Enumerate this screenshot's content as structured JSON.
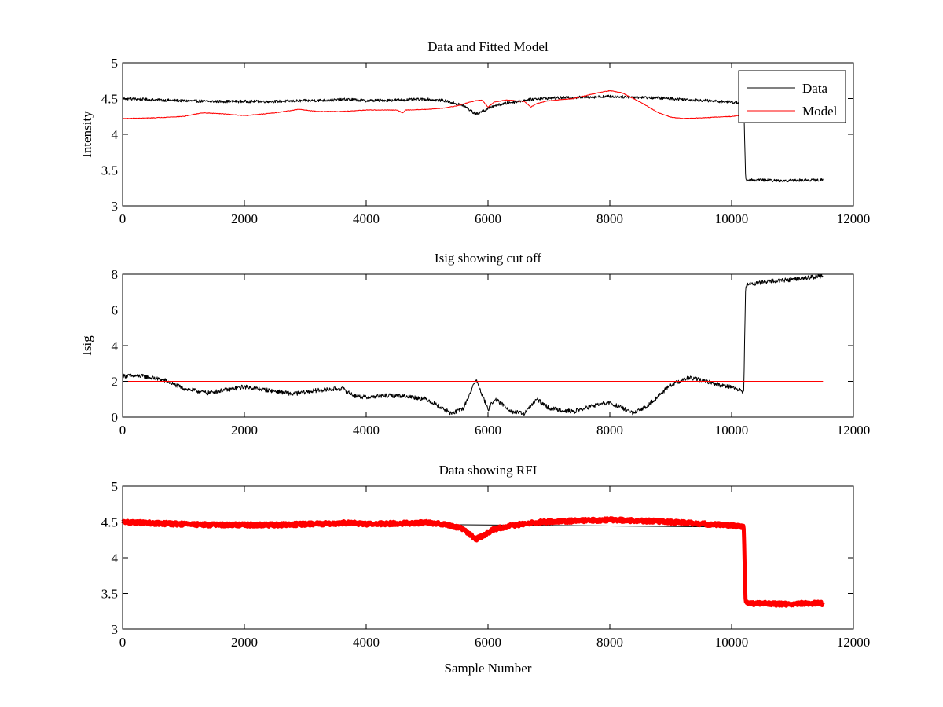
{
  "chart_data": [
    {
      "type": "line",
      "title": "Data and Fitted Model",
      "xlabel": "",
      "ylabel": "Intensity",
      "xlim": [
        0,
        12000
      ],
      "ylim": [
        3,
        5
      ],
      "xticks": [
        0,
        2000,
        4000,
        6000,
        8000,
        10000,
        12000
      ],
      "yticks": [
        3,
        3.5,
        4,
        4.5,
        5
      ],
      "xtick_labels": [
        "0",
        "2000",
        "4000",
        "6000",
        "8000",
        "10000",
        "12000"
      ],
      "ytick_labels": [
        "3",
        "3.5",
        "4",
        "4.5",
        "5"
      ],
      "legend": {
        "position": "top-right",
        "entries": [
          "Data",
          "Model"
        ]
      },
      "series": [
        {
          "name": "Data",
          "color": "#000000",
          "noise": 0.02,
          "x": [
            0,
            300,
            600,
            1000,
            1500,
            2000,
            2500,
            3000,
            3500,
            3700,
            4000,
            4500,
            5000,
            5300,
            5600,
            5800,
            5900,
            6100,
            6400,
            6800,
            7200,
            7600,
            8000,
            8400,
            8800,
            9200,
            9600,
            10000,
            10100,
            10200,
            10230,
            10500,
            10800,
            11200,
            11500
          ],
          "y": [
            4.5,
            4.49,
            4.48,
            4.47,
            4.46,
            4.46,
            4.46,
            4.47,
            4.48,
            4.49,
            4.47,
            4.48,
            4.49,
            4.47,
            4.4,
            4.28,
            4.32,
            4.4,
            4.45,
            4.5,
            4.51,
            4.52,
            4.53,
            4.52,
            4.51,
            4.49,
            4.47,
            4.45,
            4.44,
            4.43,
            3.36,
            3.36,
            3.35,
            3.36,
            3.36
          ]
        },
        {
          "name": "Model",
          "color": "#ff0000",
          "noise": 0.004,
          "x": [
            0,
            500,
            1000,
            1300,
            1600,
            2000,
            2500,
            2900,
            3200,
            3600,
            4000,
            4500,
            4600,
            4650,
            5000,
            5300,
            5500,
            5700,
            5800,
            5900,
            6000,
            6100,
            6300,
            6600,
            6700,
            6800,
            7000,
            7400,
            7600,
            7800,
            8000,
            8200,
            8500,
            8800,
            9000,
            9200,
            9500,
            10000,
            10200
          ],
          "y": [
            4.22,
            4.23,
            4.25,
            4.3,
            4.29,
            4.26,
            4.3,
            4.35,
            4.32,
            4.32,
            4.34,
            4.34,
            4.3,
            4.34,
            4.35,
            4.37,
            4.4,
            4.45,
            4.47,
            4.48,
            4.38,
            4.45,
            4.48,
            4.46,
            4.38,
            4.43,
            4.47,
            4.5,
            4.54,
            4.58,
            4.61,
            4.58,
            4.45,
            4.3,
            4.24,
            4.22,
            4.23,
            4.25,
            4.27
          ]
        }
      ]
    },
    {
      "type": "line",
      "title": "Isig showing cut off",
      "xlabel": "",
      "ylabel": "Isig",
      "xlim": [
        0,
        12000
      ],
      "ylim": [
        0,
        8
      ],
      "xticks": [
        0,
        2000,
        4000,
        6000,
        8000,
        10000,
        12000
      ],
      "yticks": [
        0,
        2,
        4,
        6,
        8
      ],
      "xtick_labels": [
        "0",
        "2000",
        "4000",
        "6000",
        "8000",
        "10000",
        "12000"
      ],
      "ytick_labels": [
        "0",
        "2",
        "4",
        "6",
        "8"
      ],
      "series": [
        {
          "name": "Isig",
          "color": "#000000",
          "noise": 0.12,
          "x": [
            0,
            300,
            700,
            1000,
            1400,
            2000,
            2400,
            2800,
            3200,
            3600,
            3800,
            4000,
            4300,
            4600,
            5000,
            5200,
            5400,
            5600,
            5800,
            5900,
            6000,
            6100,
            6200,
            6400,
            6600,
            6800,
            7000,
            7400,
            7800,
            8000,
            8200,
            8400,
            8600,
            9000,
            9300,
            9600,
            9800,
            10000,
            10200,
            10230,
            10600,
            11000,
            11500
          ],
          "y": [
            2.3,
            2.3,
            2.05,
            1.6,
            1.35,
            1.7,
            1.5,
            1.3,
            1.5,
            1.6,
            1.2,
            1.1,
            1.2,
            1.2,
            1.0,
            0.6,
            0.2,
            0.5,
            2.1,
            1.3,
            0.4,
            1.0,
            0.8,
            0.3,
            0.2,
            1.0,
            0.5,
            0.3,
            0.7,
            0.8,
            0.5,
            0.2,
            0.6,
            1.8,
            2.2,
            2.0,
            1.8,
            1.7,
            1.4,
            7.4,
            7.6,
            7.7,
            7.9
          ]
        },
        {
          "name": "Cut off",
          "color": "#ff0000",
          "noise": 0,
          "x": [
            0,
            11500
          ],
          "y": [
            2,
            2
          ]
        }
      ]
    },
    {
      "type": "line",
      "title": "Data showing RFI",
      "xlabel": "Sample Number",
      "ylabel": "",
      "xlim": [
        0,
        12000
      ],
      "ylim": [
        3,
        5
      ],
      "xticks": [
        0,
        2000,
        4000,
        6000,
        8000,
        10000,
        12000
      ],
      "yticks": [
        3,
        3.5,
        4,
        4.5,
        5
      ],
      "xtick_labels": [
        "0",
        "2000",
        "4000",
        "6000",
        "8000",
        "10000",
        "12000"
      ],
      "ytick_labels": [
        "3",
        "3.5",
        "4",
        "4.5",
        "5"
      ],
      "series": [
        {
          "name": "Data",
          "color": "#000000",
          "noise": 0.0,
          "x": [
            0,
            10200,
            10230,
            11500
          ],
          "y": [
            4.5,
            4.43,
            3.36,
            3.36
          ]
        },
        {
          "name": "RFI",
          "color": "#ff0000",
          "noise": 0.025,
          "thick": true,
          "x": [
            0,
            300,
            600,
            1000,
            1500,
            2000,
            2500,
            3000,
            3500,
            3700,
            4000,
            4500,
            5000,
            5300,
            5600,
            5800,
            5900,
            6100,
            6400,
            6800,
            7200,
            7600,
            8000,
            8400,
            8800,
            9200,
            9600,
            10000,
            10100,
            10200,
            10230,
            10500,
            10800,
            11200,
            11500
          ],
          "y": [
            4.5,
            4.49,
            4.48,
            4.47,
            4.46,
            4.46,
            4.46,
            4.47,
            4.48,
            4.49,
            4.47,
            4.48,
            4.49,
            4.47,
            4.4,
            4.26,
            4.3,
            4.4,
            4.45,
            4.5,
            4.51,
            4.52,
            4.53,
            4.52,
            4.51,
            4.49,
            4.47,
            4.45,
            4.44,
            4.43,
            3.36,
            3.36,
            3.35,
            3.36,
            3.36
          ]
        }
      ]
    }
  ]
}
